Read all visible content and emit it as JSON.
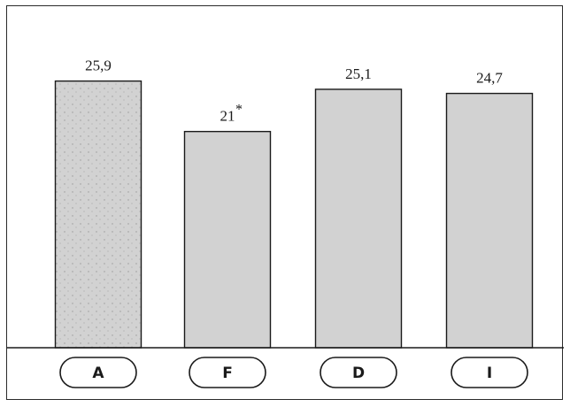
{
  "chart_data": {
    "type": "bar",
    "categories": [
      "A",
      "F",
      "D",
      "I"
    ],
    "values": [
      25.9,
      21,
      25.1,
      24.7
    ],
    "value_labels": [
      "25,9",
      "21",
      "25,1",
      "24,7"
    ],
    "significance_marks": [
      "",
      "*",
      "",
      ""
    ],
    "title": "",
    "xlabel": "",
    "ylabel": "",
    "ylim": [
      0,
      27.5
    ],
    "grid": false,
    "legend": "none",
    "bar_color": "#d2d2d2",
    "bar_stroke": "#1a1a1a"
  }
}
